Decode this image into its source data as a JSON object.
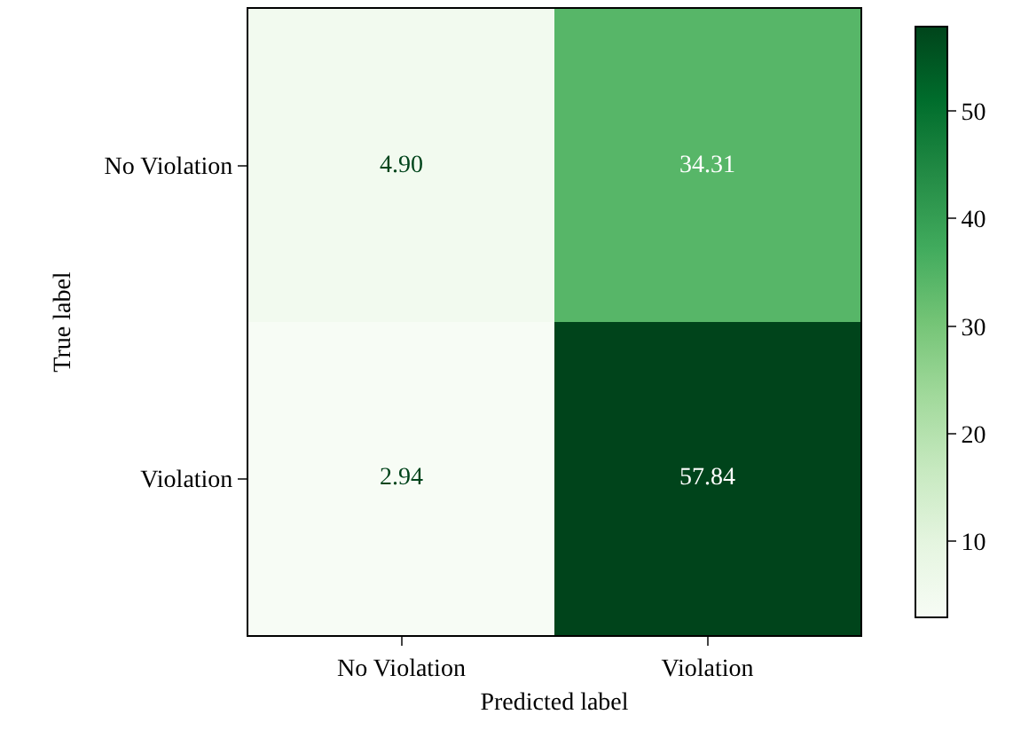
{
  "chart_data": {
    "type": "heatmap",
    "xlabel": "Predicted label",
    "ylabel": "True label",
    "categories": [
      "No Violation",
      "Violation"
    ],
    "y_categories": [
      "No Violation",
      "Violation"
    ],
    "cells": [
      [
        4.9,
        34.31
      ],
      [
        2.94,
        57.84
      ]
    ],
    "cell_labels": [
      [
        "4.90",
        "34.31"
      ],
      [
        "2.94",
        "57.84"
      ]
    ],
    "clim": [
      2.94,
      57.84
    ],
    "cticks": [
      10,
      20,
      30,
      40,
      50
    ],
    "data_labels": true
  }
}
